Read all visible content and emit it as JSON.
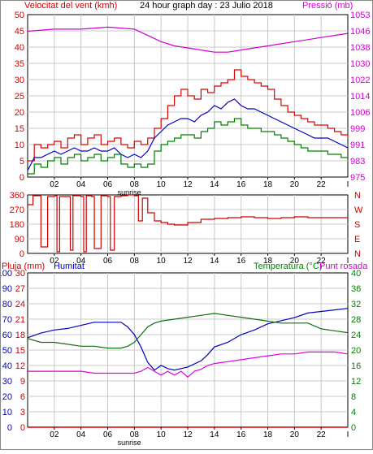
{
  "header": {
    "left": "Velocitat del vent (kmh)",
    "center": "24 hour graph day : 23 Julio 2018",
    "right": "Pressió (mb)"
  },
  "colors": {
    "wind_gust": "#e00000",
    "wind_avg": "#0000c8",
    "wind_min": "#008000",
    "pressure": "#d000d0",
    "direction": "#d00000",
    "humidity": "#0000c0",
    "temperature": "#107010",
    "dewpoint": "#e000e0",
    "rain": "#d00000",
    "grid": "#c8c8c8",
    "axis_wind": "#d00000",
    "axis_pressure": "#d000d0",
    "axis_humidity": "#0000c0",
    "axis_temp": "#008000"
  },
  "x_ticks": [
    "02",
    "04",
    "06",
    "08",
    "10",
    "12",
    "14",
    "16",
    "18",
    "20",
    "22"
  ],
  "x_last_tick": "I",
  "sunrise_label": "sunrise",
  "charts": {
    "wind": {
      "left_ticks": [
        "50",
        "45",
        "40",
        "35",
        "30",
        "25",
        "20",
        "15",
        "10",
        "5",
        "0"
      ],
      "right_ticks": [
        "1053",
        "1046",
        "1038",
        "1030",
        "1022",
        "1014",
        "1006",
        "999",
        "991",
        "983",
        "975"
      ]
    },
    "direction": {
      "left_ticks": [
        "360",
        "270",
        "180",
        "90",
        "0"
      ],
      "right_ticks": [
        "N",
        "W",
        "S",
        "E",
        "N"
      ]
    },
    "climate": {
      "label_rain": "Pluja (mm)",
      "label_humidity": "Humitat",
      "label_temp": "Temperatura (°C)",
      "label_dew": "Punt rosada",
      "humidity_ticks": [
        "100",
        "90",
        "80",
        "70",
        "60",
        "50",
        "40",
        "30",
        "20",
        "10",
        "0"
      ],
      "rain_ticks": [
        "30",
        "27",
        "24",
        "21",
        "18",
        "15",
        "12",
        "9",
        "6",
        "3",
        "0"
      ],
      "temp_ticks": [
        "40",
        "36",
        "32",
        "28",
        "24",
        "20",
        "16",
        "12",
        "8",
        "4",
        "0"
      ]
    }
  },
  "chart_data": [
    {
      "type": "line",
      "title": "24 hour graph day : 23 Julio 2018",
      "xlabel": "",
      "ylabel": "Velocitat del vent (kmh)",
      "ylabel_right": "Pressió (mb)",
      "ylim": [
        0,
        50
      ],
      "ylim_right": [
        975,
        1053
      ],
      "x_range_hours": [
        0,
        24
      ],
      "sunrise_hour": 7.5,
      "series": [
        {
          "name": "gust",
          "axis": "left",
          "x": [
            0,
            0.5,
            1,
            1.5,
            2,
            2.5,
            3,
            3.5,
            4,
            4.5,
            5,
            5.5,
            6,
            6.5,
            7,
            7.5,
            8,
            8.5,
            9,
            9.5,
            10,
            10.5,
            11,
            11.5,
            12,
            12.5,
            13,
            13.5,
            14,
            14.5,
            15,
            15.5,
            16,
            16.5,
            17,
            17.5,
            18,
            18.5,
            19,
            19.5,
            20,
            20.5,
            21,
            21.5,
            22,
            22.5,
            23,
            23.5,
            24
          ],
          "values": [
            5,
            10,
            9,
            10,
            11,
            9,
            12,
            13,
            10,
            12,
            13,
            10,
            11,
            12,
            10,
            9,
            11,
            10,
            12,
            15,
            18,
            22,
            25,
            27,
            25,
            24,
            27,
            26,
            28,
            29,
            30,
            33,
            31,
            30,
            29,
            28,
            27,
            24,
            22,
            20,
            19,
            18,
            17,
            16,
            16,
            15,
            14,
            13,
            12
          ]
        },
        {
          "name": "average",
          "axis": "left",
          "x": [
            0,
            0.5,
            1,
            1.5,
            2,
            2.5,
            3,
            3.5,
            4,
            4.5,
            5,
            5.5,
            6,
            6.5,
            7,
            7.5,
            8,
            8.5,
            9,
            9.5,
            10,
            10.5,
            11,
            11.5,
            12,
            12.5,
            13,
            13.5,
            14,
            14.5,
            15,
            15.5,
            16,
            16.5,
            17,
            17.5,
            18,
            18.5,
            19,
            19.5,
            20,
            20.5,
            21,
            21.5,
            22,
            22.5,
            23,
            23.5,
            24
          ],
          "values": [
            2,
            6,
            6,
            7,
            8,
            7,
            8,
            9,
            8,
            8,
            9,
            8,
            8,
            9,
            7,
            6,
            7,
            6,
            8,
            12,
            14,
            16,
            17,
            18,
            18,
            17,
            19,
            20,
            22,
            21,
            23,
            24,
            22,
            21,
            21,
            20,
            19,
            18,
            17,
            16,
            15,
            14,
            13,
            12,
            12,
            12,
            11,
            10,
            9
          ]
        },
        {
          "name": "minimum",
          "axis": "left",
          "x": [
            0,
            0.5,
            1,
            1.5,
            2,
            2.5,
            3,
            3.5,
            4,
            4.5,
            5,
            5.5,
            6,
            6.5,
            7,
            7.5,
            8,
            8.5,
            9,
            9.5,
            10,
            10.5,
            11,
            11.5,
            12,
            12.5,
            13,
            13.5,
            14,
            14.5,
            15,
            15.5,
            16,
            16.5,
            17,
            17.5,
            18,
            18.5,
            19,
            19.5,
            20,
            20.5,
            21,
            21.5,
            22,
            22.5,
            23,
            23.5,
            24
          ],
          "values": [
            1,
            4,
            3,
            5,
            6,
            4,
            6,
            7,
            5,
            6,
            7,
            5,
            6,
            7,
            4,
            3,
            4,
            3,
            4,
            8,
            10,
            11,
            12,
            13,
            13,
            12,
            14,
            15,
            17,
            16,
            17,
            18,
            16,
            15,
            15,
            14,
            14,
            13,
            12,
            11,
            10,
            9,
            8,
            8,
            8,
            7,
            7,
            6,
            6
          ]
        },
        {
          "name": "pressure",
          "axis": "right",
          "x": [
            0,
            2,
            4,
            6,
            8,
            9,
            10,
            11,
            12,
            13,
            14,
            15,
            16,
            17,
            18,
            19,
            20,
            21,
            22,
            23,
            24
          ],
          "values": [
            1045,
            1046,
            1046,
            1047,
            1046,
            1043,
            1040,
            1038,
            1037,
            1036,
            1035,
            1035,
            1036,
            1037,
            1038,
            1039,
            1040,
            1041,
            1042,
            1043,
            1044
          ]
        }
      ]
    },
    {
      "type": "line",
      "title": "",
      "ylabel": "",
      "ylim": [
        0,
        360
      ],
      "y_ticks": [
        360,
        270,
        180,
        90,
        0
      ],
      "y_tick_labels_right": [
        "N",
        "W",
        "S",
        "E",
        "N"
      ],
      "series": [
        {
          "name": "direction",
          "x": [
            0,
            0.4,
            0.6,
            1,
            1.5,
            2,
            2.2,
            2.4,
            3,
            3.2,
            3.4,
            4,
            4.2,
            4.4,
            4.8,
            5,
            5.5,
            6,
            6.2,
            6.5,
            7,
            7.5,
            8,
            8.3,
            8.6,
            9,
            9.5,
            10,
            10.5,
            11,
            12,
            13,
            14,
            15,
            16,
            17,
            18,
            19,
            20,
            21,
            22,
            23,
            24
          ],
          "values": [
            300,
            355,
            355,
            40,
            350,
            355,
            10,
            350,
            350,
            20,
            355,
            350,
            10,
            355,
            350,
            30,
            355,
            350,
            20,
            350,
            355,
            360,
            355,
            200,
            340,
            250,
            200,
            190,
            180,
            175,
            190,
            210,
            215,
            220,
            225,
            220,
            215,
            220,
            225,
            220,
            220,
            220,
            220
          ]
        }
      ]
    },
    {
      "type": "line",
      "title": "",
      "ylim": [
        0,
        100
      ],
      "series": [
        {
          "name": "Humitat",
          "axis": "humidity",
          "x": [
            0,
            1,
            2,
            3,
            4,
            5,
            6,
            7,
            7.5,
            8,
            8.5,
            9,
            9.5,
            10,
            10.5,
            11,
            12,
            13,
            13.5,
            14,
            15,
            16,
            17,
            18,
            19,
            20,
            21,
            22,
            23,
            24
          ],
          "values": [
            58,
            61,
            63,
            64,
            66,
            68,
            68,
            68,
            65,
            60,
            52,
            42,
            37,
            40,
            38,
            37,
            39,
            43,
            47,
            52,
            55,
            60,
            63,
            67,
            69,
            71,
            74,
            75,
            76,
            77
          ]
        },
        {
          "name": "Temperatura (°C)",
          "axis": "temperature",
          "x": [
            0,
            1,
            2,
            3,
            4,
            5,
            6,
            7,
            7.5,
            8,
            8.5,
            9,
            9.5,
            10,
            11,
            12,
            13,
            14,
            15,
            16,
            17,
            18,
            19,
            20,
            21,
            22,
            23,
            24
          ],
          "values": [
            23,
            22,
            22,
            21.5,
            21,
            21,
            20.5,
            20.5,
            21,
            22,
            24,
            26,
            27,
            27.5,
            28,
            28.5,
            29,
            29.5,
            29,
            28.5,
            28,
            27.5,
            27,
            27,
            27,
            25.5,
            25,
            24.5
          ]
        },
        {
          "name": "Punt rosada",
          "axis": "temperature",
          "x": [
            0,
            1,
            2,
            3,
            4,
            5,
            6,
            7,
            8,
            8.5,
            9,
            9.5,
            10,
            10.5,
            11,
            11.5,
            12,
            12.5,
            13,
            13.5,
            14,
            15,
            16,
            17,
            18,
            19,
            20,
            21,
            22,
            23,
            24
          ],
          "values": [
            14.5,
            14.5,
            14.5,
            14.5,
            14.5,
            14,
            14,
            14,
            14,
            14.5,
            15.5,
            14.5,
            13.5,
            14.5,
            13.5,
            14.5,
            13,
            14.5,
            15,
            16,
            16.5,
            17,
            17.5,
            18,
            18.5,
            19,
            19,
            19.5,
            19.5,
            19.5,
            19
          ]
        },
        {
          "name": "Pluja (mm)",
          "axis": "rain",
          "x": [
            0,
            24
          ],
          "values": [
            0,
            0
          ]
        }
      ]
    }
  ]
}
